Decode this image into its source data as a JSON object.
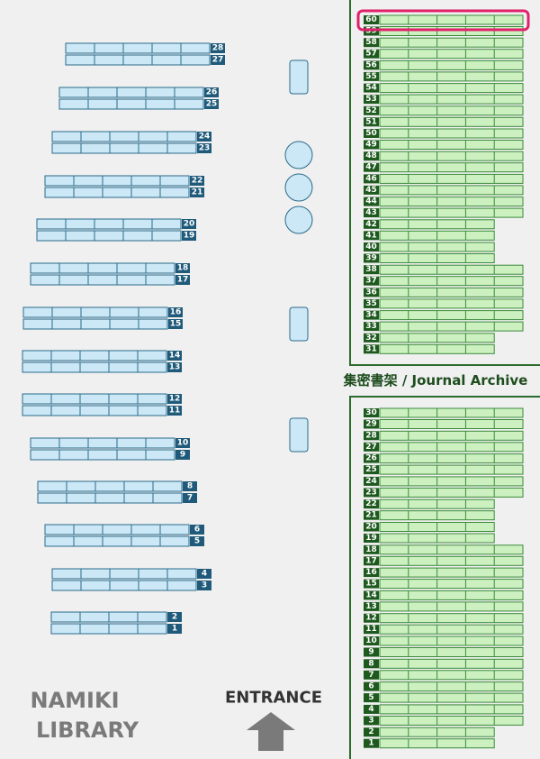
{
  "map": {
    "title_lines": [
      "NAMIKI",
      "LIBRARY"
    ],
    "entrance": "ENTRANCE",
    "archive_label": "集密書架 / Journal Archive",
    "stacks": [
      1,
      2,
      3,
      4,
      5,
      6,
      7,
      8,
      9,
      10,
      11,
      12,
      13,
      14,
      15,
      16,
      17,
      18,
      19,
      20,
      21,
      22,
      23,
      24,
      25,
      26,
      27,
      28
    ],
    "archive_lower": [
      1,
      2,
      3,
      4,
      5,
      6,
      7,
      8,
      9,
      10,
      11,
      12,
      13,
      14,
      15,
      16,
      17,
      18,
      19,
      20,
      21,
      22,
      23,
      24,
      25,
      26,
      27,
      28,
      29,
      30
    ],
    "archive_upper": [
      31,
      32,
      33,
      34,
      35,
      36,
      37,
      38,
      39,
      40,
      41,
      42,
      43,
      44,
      45,
      46,
      47,
      48,
      49,
      50,
      51,
      52,
      53,
      54,
      55,
      56,
      57,
      58,
      59,
      60
    ]
  }
}
